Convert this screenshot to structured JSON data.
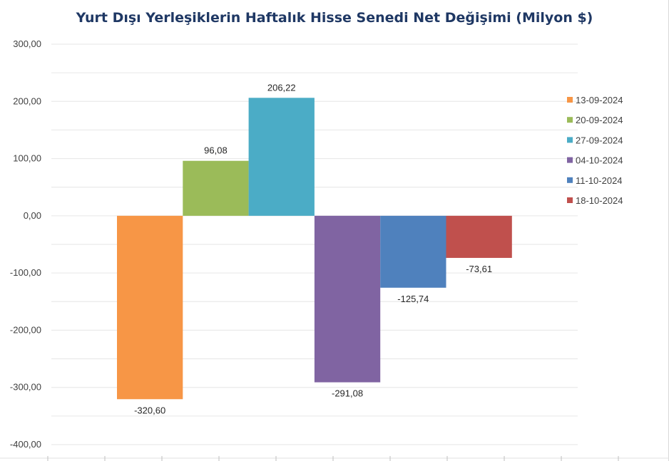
{
  "chart_data": {
    "type": "bar",
    "title": "Yurt Dışı Yerleşiklerin Haftalık Hisse Senedi Net Değişimi (Milyon $)",
    "xlabel": "",
    "ylabel": "",
    "ylim": [
      -400,
      300
    ],
    "ytick_step": 100,
    "ytick_labels": [
      "300,00",
      "200,00",
      "100,00",
      "0,00",
      "-100,00",
      "-200,00",
      "-300,00",
      "-400,00"
    ],
    "grid": true,
    "legend_position": "right",
    "series": [
      {
        "name": "13-09-2024",
        "value": -320.6,
        "label": "-320,60",
        "color": "#f79646"
      },
      {
        "name": "20-09-2024",
        "value": 96.08,
        "label": "96,08",
        "color": "#9bbb59"
      },
      {
        "name": "27-09-2024",
        "value": 206.22,
        "label": "206,22",
        "color": "#4bacc6"
      },
      {
        "name": "04-10-2024",
        "value": -291.08,
        "label": "-291,08",
        "color": "#8064a2"
      },
      {
        "name": "11-10-2024",
        "value": -125.74,
        "label": "-125,74",
        "color": "#4f81bd"
      },
      {
        "name": "18-10-2024",
        "value": -73.61,
        "label": "-73,61",
        "color": "#c0504d"
      }
    ]
  }
}
